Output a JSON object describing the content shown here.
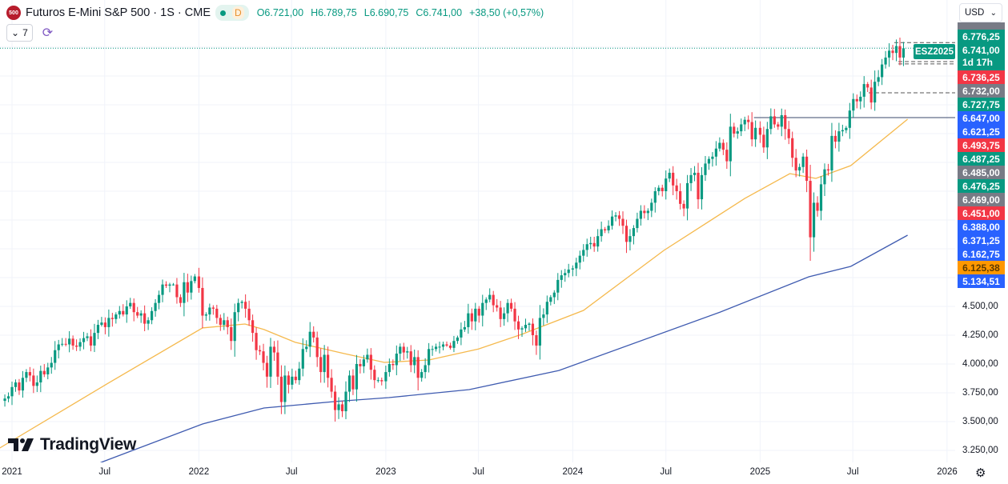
{
  "header": {
    "logo_text": "500",
    "title": "Futuros E-Mini S&P 500 · 1S · CME",
    "status_badge": "D",
    "open": "O6.721,00",
    "high": "H6.789,75",
    "low": "L6.690,75",
    "close": "C6.741,00",
    "change": "+38,50 (+0,57%)",
    "indicators_count": "7",
    "currency": "USD"
  },
  "icons": [
    "chevron-down-icon",
    "sync-icon",
    "gear-icon",
    "tradingview-logo"
  ],
  "watermark": "TradingView",
  "symbol_tag": "ESZ2025",
  "colors": {
    "up": "#089981",
    "down": "#f23645",
    "ma_fast": "#f5b94d",
    "ma_slow": "#3f5bb0",
    "blue": "#2962ff",
    "gray": "#787b86",
    "orange": "#ff9800",
    "level": "#2a2e39"
  },
  "price_labels": [
    {
      "text": "6.776,25",
      "color": "#089981"
    },
    {
      "text": "6.741,00",
      "sub": "1d 17h",
      "color": "#089981"
    },
    {
      "text": "6.736,25",
      "color": "#f23645"
    },
    {
      "text": "6.732,00",
      "color": "#787b86"
    },
    {
      "text": "6.727,75",
      "color": "#089981"
    },
    {
      "text": "6.647,00",
      "color": "#2962ff"
    },
    {
      "text": "6.621,25",
      "color": "#2962ff"
    },
    {
      "text": "6.493,75",
      "color": "#f23645"
    },
    {
      "text": "6.487,25",
      "color": "#089981"
    },
    {
      "text": "6.485,00",
      "color": "#787b86"
    },
    {
      "text": "6.476,25",
      "color": "#089981"
    },
    {
      "text": "6.469,00",
      "color": "#787b86"
    },
    {
      "text": "6.451,00",
      "color": "#f23645"
    },
    {
      "text": "6.388,00",
      "color": "#2962ff"
    },
    {
      "text": "6.371,25",
      "color": "#2962ff"
    },
    {
      "text": "6.162,75",
      "color": "#2962ff"
    },
    {
      "text": "6.125,38",
      "color": "#ff9800",
      "textColor": "#5d3a00"
    },
    {
      "text": "5.134,51",
      "color": "#2962ff"
    }
  ],
  "chart_data": {
    "type": "candlestick",
    "interval": "1 week",
    "scale": "linear",
    "grid": true,
    "y_ticks": [
      {
        "value": 4500,
        "label": "4.500,00"
      },
      {
        "value": 4250,
        "label": "4.250,00"
      },
      {
        "value": 4000,
        "label": "4.000,00"
      },
      {
        "value": 3750,
        "label": "3.750,00"
      },
      {
        "value": 3500,
        "label": "3.500,00"
      },
      {
        "value": 3250,
        "label": "3.250,00"
      }
    ],
    "x_ticks": [
      {
        "label": "2021",
        "date": "2021-01-01"
      },
      {
        "label": "Jul",
        "date": "2021-07-01"
      },
      {
        "label": "2022",
        "date": "2022-01-01"
      },
      {
        "label": "Jul",
        "date": "2022-07-01"
      },
      {
        "label": "2023",
        "date": "2023-01-01"
      },
      {
        "label": "Jul",
        "date": "2023-07-01"
      },
      {
        "label": "2024",
        "date": "2024-01-01"
      },
      {
        "label": "Jul",
        "date": "2024-07-01"
      },
      {
        "label": "2025",
        "date": "2025-01-01"
      },
      {
        "label": "Jul",
        "date": "2025-07-01"
      },
      {
        "label": "2026",
        "date": "2026-01-01"
      }
    ],
    "ylim": [
      3146,
      6965
    ],
    "weekly_closes_by_year": {
      "2020": [
        3700,
        3720
      ],
      "2021": [
        3800,
        3840,
        3770,
        3880,
        3930,
        3900,
        3810,
        3840,
        3940,
        3910,
        3970,
        4010,
        4120,
        4170,
        4175,
        4170,
        4220,
        4160,
        4150,
        4190,
        4225,
        4240,
        4160,
        4270,
        4340,
        4360,
        4320,
        4400,
        4390,
        4430,
        4460,
        4430,
        4500,
        4530,
        4450,
        4420,
        4440,
        4350,
        4380,
        4460,
        4530,
        4600,
        4690,
        4680,
        4690,
        4690,
        4580,
        4530,
        4710,
        4620,
        4720,
        4760
      ],
      "2022": [
        4660,
        4420,
        4430,
        4490,
        4480,
        4400,
        4340,
        4380,
        4320,
        4200,
        4450,
        4530,
        4540,
        4480,
        4380,
        4270,
        4120,
        4110,
        4010,
        3890,
        4150,
        4100,
        3890,
        3670,
        3900,
        3820,
        3890,
        3860,
        3960,
        4130,
        4150,
        4280,
        4230,
        4060,
        3930,
        4080,
        3880,
        3760,
        3600,
        3650,
        3590,
        3760,
        3900,
        3780,
        4000,
        3980,
        4040,
        4080,
        3950,
        3860,
        3860,
        3850
      ],
      "2023": [
        3930,
        4000,
        3990,
        4090,
        4150,
        4100,
        4110,
        3990,
        4060,
        3880,
        3930,
        3990,
        4130,
        4130,
        4150,
        4150,
        4170,
        4160,
        4140,
        4200,
        4230,
        4300,
        4320,
        4440,
        4370,
        4480,
        4420,
        4530,
        4560,
        4600,
        4510,
        4490,
        4390,
        4440,
        4530,
        4480,
        4370,
        4300,
        4310,
        4340,
        4350,
        4250,
        4160,
        4400,
        4430,
        4540,
        4580,
        4620,
        4730,
        4770,
        4790,
        4820
      ],
      "2024": [
        4830,
        4880,
        4940,
        4990,
        5040,
        5050,
        5020,
        5110,
        5170,
        5160,
        5200,
        5280,
        5290,
        5260,
        5200,
        5060,
        5110,
        5180,
        5260,
        5330,
        5310,
        5330,
        5400,
        5500,
        5530,
        5500,
        5610,
        5660,
        5550,
        5500,
        5390,
        5350,
        5570,
        5640,
        5660,
        5430,
        5640,
        5740,
        5780,
        5800,
        5870,
        5920,
        5860,
        5760,
        6060,
        6000,
        6020,
        6080,
        6120,
        6100,
        5950,
        6050
      ],
      "2025": [
        5990,
        5880,
        6040,
        6150,
        6080,
        6060,
        6160,
        6040,
        5960,
        5790,
        5680,
        5710,
        5800,
        5590,
        5100,
        5400,
        5330,
        5560,
        5690,
        5680,
        5980,
        5930,
        6020,
        6030,
        6050,
        6200,
        6300,
        6280,
        6320,
        6430,
        6400,
        6270,
        6450,
        6490,
        6600,
        6660,
        6720,
        6700,
        6760,
        6660,
        6741
      ]
    },
    "last_price": 6741,
    "series": [
      {
        "kind": "moving-average",
        "color": "#f5b94d",
        "last": 6125.38,
        "points": [
          [
            "2020-12-08",
            3271
          ],
          [
            "2021-07-05",
            3826
          ],
          [
            "2022-01-08",
            4313
          ],
          [
            "2022-04-01",
            4347
          ],
          [
            "2022-05-08",
            4299
          ],
          [
            "2022-07-08",
            4188
          ],
          [
            "2022-10-12",
            4090
          ],
          [
            "2022-12-29",
            4014
          ],
          [
            "2023-03-26",
            4035
          ],
          [
            "2023-07-01",
            4130
          ],
          [
            "2023-09-23",
            4257
          ],
          [
            "2024-01-22",
            4465
          ],
          [
            "2024-06-27",
            4986
          ],
          [
            "2024-12-02",
            5437
          ],
          [
            "2025-02-28",
            5653
          ],
          [
            "2025-04-20",
            5611
          ],
          [
            "2025-06-27",
            5722
          ],
          [
            "2025-10-16",
            6125
          ]
        ]
      },
      {
        "kind": "moving-average",
        "color": "#3f5bb0",
        "last": 5134.51,
        "points": [
          [
            "2021-05-20",
            3080
          ],
          [
            "2021-06-28",
            3153
          ],
          [
            "2022-01-08",
            3479
          ],
          [
            "2022-05-08",
            3618
          ],
          [
            "2022-09-24",
            3674
          ],
          [
            "2023-01-07",
            3708
          ],
          [
            "2023-06-13",
            3778
          ],
          [
            "2023-12-05",
            3944
          ],
          [
            "2024-10-15",
            4451
          ],
          [
            "2025-04-06",
            4757
          ],
          [
            "2025-06-27",
            4847
          ],
          [
            "2025-10-16",
            5118
          ]
        ]
      }
    ],
    "levels": [
      {
        "price": 6139,
        "style": "solid",
        "from": "2024-12-20"
      },
      {
        "price": 6790,
        "style": "dashed",
        "from": "2025-09-20"
      },
      {
        "price": 6625,
        "style": "dashed",
        "from": "2025-09-28"
      },
      {
        "price": 6605,
        "style": "dashed",
        "from": "2025-09-28"
      },
      {
        "price": 6354,
        "style": "dashed",
        "from": "2025-08-01"
      }
    ]
  }
}
